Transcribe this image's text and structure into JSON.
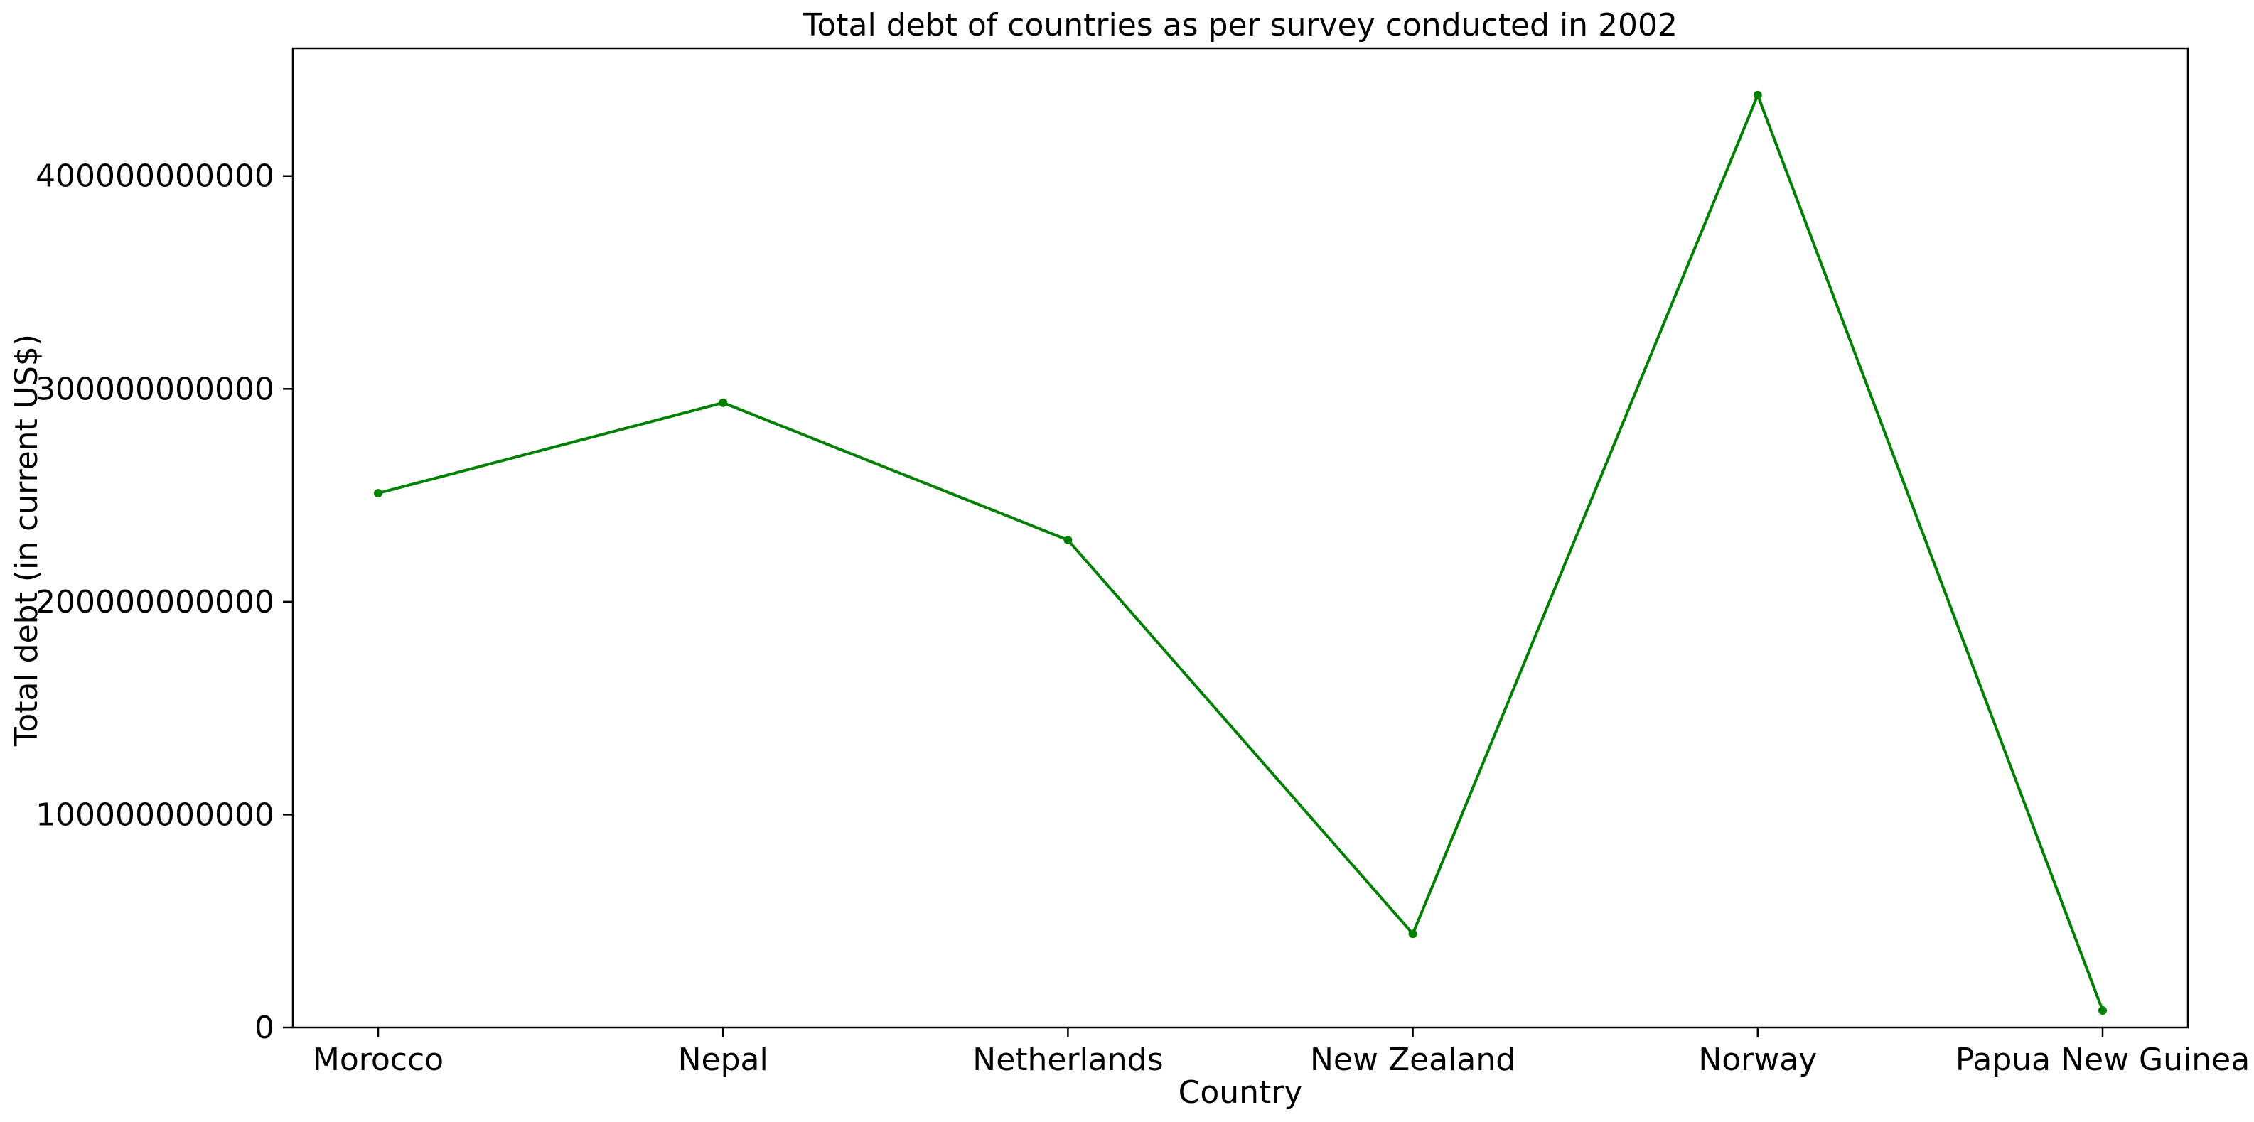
{
  "chart_data": {
    "type": "line",
    "title": "Total debt of countries as per survey conducted in 2002",
    "xlabel": "Country",
    "ylabel": "Total debt (in current US$)",
    "categories": [
      "Morocco",
      "Nepal",
      "Netherlands",
      "New Zealand",
      "Norway",
      "Papua New Guinea"
    ],
    "series": [
      {
        "values": [
          251000000000,
          293500000000,
          229000000000,
          44000000000,
          438000000000,
          8000000000
        ],
        "color": "#008000",
        "marker": "circle"
      }
    ],
    "ylim": [
      0,
      460000000000
    ],
    "yticks": [
      0,
      100000000000,
      200000000000,
      300000000000,
      400000000000
    ],
    "ytick_labels": [
      "0",
      "100000000000",
      "200000000000",
      "300000000000",
      "400000000000"
    ],
    "grid": false,
    "legend": "none"
  }
}
